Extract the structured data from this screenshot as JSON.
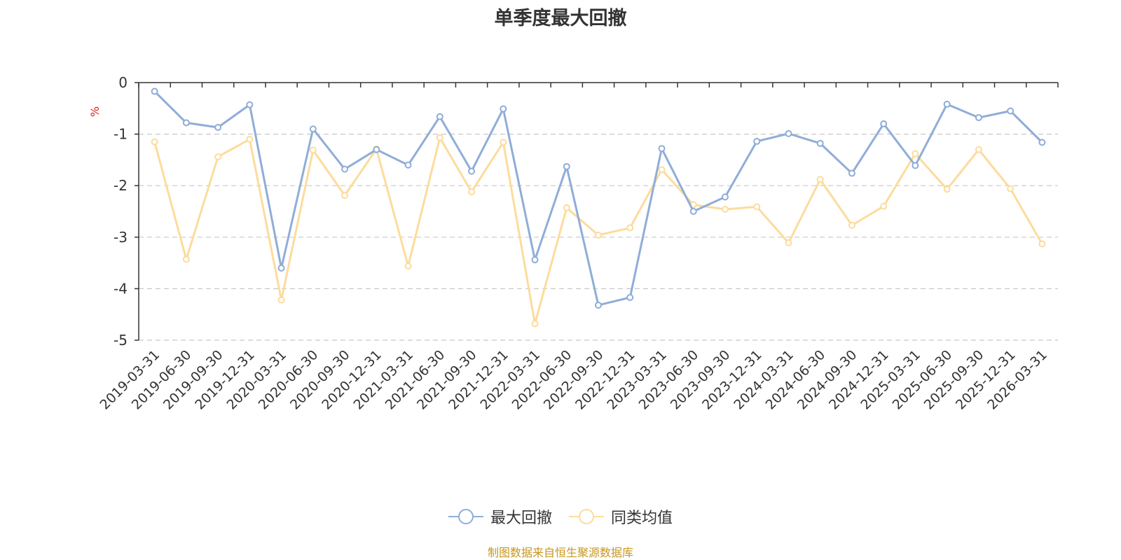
{
  "chart_data": {
    "type": "line",
    "title": "单季度最大回撤",
    "ylabel": "%",
    "ylim": [
      -5,
      0
    ],
    "yticks": [
      0,
      -1,
      -2,
      -3,
      -4,
      -5
    ],
    "grid": true,
    "legend_position": "bottom-center",
    "categories": [
      "2019-03-31",
      "2019-06-30",
      "2019-09-30",
      "2019-12-31",
      "2020-03-31",
      "2020-06-30",
      "2020-09-30",
      "2020-12-31",
      "2021-03-31",
      "2021-06-30",
      "2021-09-30",
      "2021-12-31",
      "2022-03-31",
      "2022-06-30",
      "2022-09-30",
      "2022-12-31",
      "2023-03-31",
      "2023-06-30",
      "2023-09-30",
      "2023-12-31",
      "2024-03-31",
      "2024-06-30",
      "2024-09-30",
      "2024-12-31",
      "2025-03-31",
      "2025-06-30",
      "2025-09-30",
      "2025-12-31",
      "2026-03-31"
    ],
    "series": [
      {
        "name": "最大回撤",
        "color": "#8fadd8",
        "values": [
          -0.17,
          -0.78,
          -0.87,
          -0.43,
          -3.6,
          -0.9,
          -1.68,
          -1.3,
          -1.6,
          -0.66,
          -1.72,
          -0.51,
          -3.44,
          -1.63,
          -4.32,
          -4.17,
          -1.28,
          -2.5,
          -2.22,
          -1.14,
          -0.99,
          -1.18,
          -1.76,
          -0.8,
          -1.61,
          -0.42,
          -0.68,
          -0.55,
          -1.16
        ]
      },
      {
        "name": "同类均值",
        "color": "#fcdc9c",
        "values": [
          -1.15,
          -3.43,
          -1.44,
          -1.1,
          -4.22,
          -1.31,
          -2.19,
          -1.29,
          -3.56,
          -1.07,
          -2.12,
          -1.16,
          -4.68,
          -2.43,
          -2.96,
          -2.82,
          -1.69,
          -2.37,
          -2.46,
          -2.41,
          -3.11,
          -1.88,
          -2.77,
          -2.4,
          -1.38,
          -2.07,
          -1.3,
          -2.06,
          -3.13
        ]
      }
    ]
  },
  "source_note": "制图数据来自恒生聚源数据库"
}
